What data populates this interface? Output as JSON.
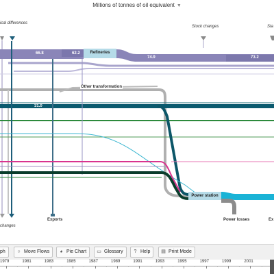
{
  "header": {
    "unit_label": "Millions of tonnes of oil equivalent"
  },
  "labels": {
    "stat_diff": "ical differences",
    "stock_changes_top": "Stock changes",
    "top_right_cut": "Sta",
    "other_transformation": "Other transformation",
    "exports": "Exports",
    "stock_changes_bottom": "changes",
    "power_losses": "Power losses",
    "bottom_right_cut": "Ex"
  },
  "nodes": {
    "refineries": "Refineries",
    "power_station": "Power station"
  },
  "flow_values": {
    "v1": "66.8",
    "v2": "62.2",
    "v3": "74.9",
    "v4": "73.2",
    "v5": "31.0"
  },
  "toolbar": {
    "graph_partial": "ph",
    "move_flows": "Move Flows",
    "pie_chart": "Pie Chart",
    "glossary": "Glossary",
    "help": "Help",
    "print_mode": "Print Mode"
  },
  "timeline": {
    "years": [
      "1979",
      "1981",
      "1983",
      "1985",
      "1987",
      "1989",
      "1991",
      "1993",
      "1995",
      "1997",
      "1999",
      "2001"
    ]
  },
  "colors": {
    "petroleum": "#8a85b8",
    "refinery_node": "#b5dbe8",
    "gas": "#0a5a6e",
    "green": "#2d8a3c",
    "electricity": "#1ab3d6",
    "pink": "#d9348f",
    "grey": "#b0b0b0"
  }
}
